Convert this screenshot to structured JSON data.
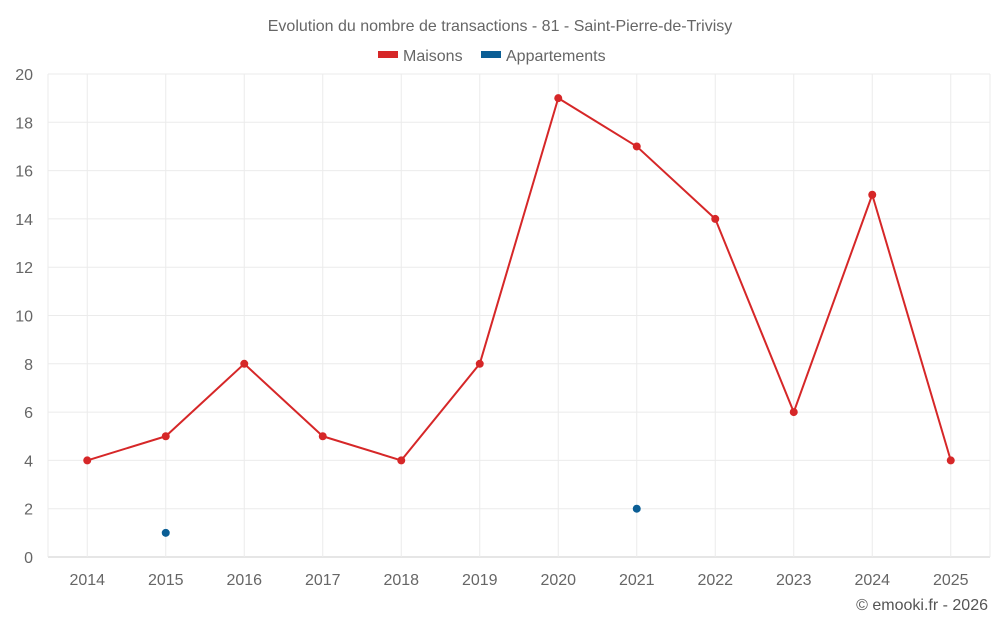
{
  "chart_data": {
    "type": "line",
    "title": "Evolution du nombre de transactions - 81 - Saint-Pierre-de-Trivisy",
    "x": [
      "2014",
      "2015",
      "2016",
      "2017",
      "2018",
      "2019",
      "2020",
      "2021",
      "2022",
      "2023",
      "2024",
      "2025"
    ],
    "ylim": [
      0,
      20
    ],
    "yticks": [
      0,
      2,
      4,
      6,
      8,
      10,
      12,
      14,
      16,
      18,
      20
    ],
    "grid": true,
    "legend_position": "top-center",
    "series": [
      {
        "name": "Maisons",
        "color": "#d62728",
        "values": [
          4,
          5,
          8,
          5,
          4,
          8,
          19,
          17,
          14,
          6,
          15,
          4
        ]
      },
      {
        "name": "Appartements",
        "color": "#0b5e95",
        "values": [
          null,
          1,
          null,
          null,
          null,
          null,
          null,
          2,
          null,
          null,
          null,
          null
        ]
      }
    ]
  },
  "credit": "© emooki.fr - 2026"
}
